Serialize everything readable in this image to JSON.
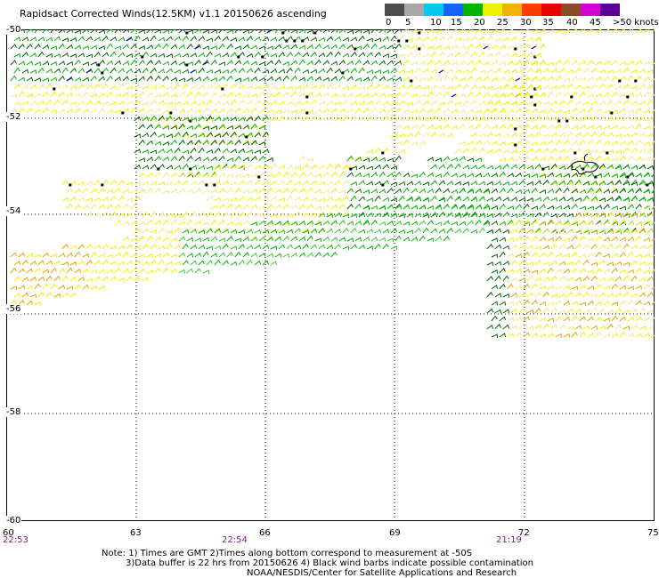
{
  "title": "Rapidsact Corrected Winds(12.5KM) v1.1 20150626 ascending",
  "speed_scale": {
    "labels": [
      "0",
      "5",
      "10",
      "15",
      "20",
      "25",
      "30",
      "35",
      "40",
      "45",
      ">50 knots"
    ],
    "colors": [
      "#4d4d4d",
      "#a8a8a8",
      "#00c8f0",
      "#1464ff",
      "#00b400",
      "#f0f000",
      "#f0b400",
      "#ff3c00",
      "#e60000",
      "#8c4b28",
      "#d200d2",
      "#5a0096"
    ]
  },
  "map": {
    "lat_labels": [
      "-50",
      "-52",
      "-54",
      "-56",
      "-58",
      "-60"
    ],
    "lon_labels": [
      "60",
      "63",
      "66",
      "69",
      "72",
      "75"
    ],
    "time_labels": [
      "22:53",
      "22:54",
      "21:19"
    ],
    "land_outline_color": "#000000",
    "grid": "dotted",
    "palette": {
      "green_dark": "#006400",
      "green": "#00b400",
      "green_light": "#32c832",
      "yellow": "#f0f000",
      "yellow_light": "#f5e678",
      "orange": "#e6a000",
      "blue": "#0000c8",
      "black": "#000000"
    }
  },
  "notes": {
    "line1": "Note: 1) Times are GMT 2)Times along bottom correspond to measurement at -50S",
    "line2": "3)Data buffer is 22 hrs from 20150626 4) Black wind barbs indicate possible contamination",
    "line3": "NOAA/NESDIS/Center for Satellite Applications and Research"
  }
}
